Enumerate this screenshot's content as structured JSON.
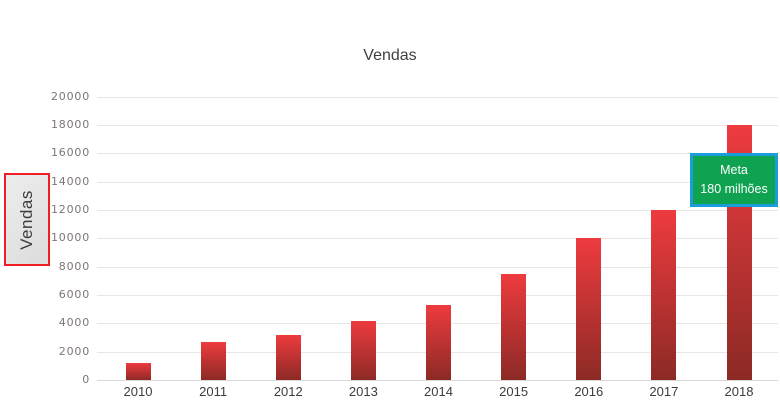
{
  "chart": {
    "y_axis_box_label": "Vendas",
    "annotation": {
      "line1": "Meta",
      "line2": "180 milhões"
    }
  },
  "chart_data": {
    "type": "bar",
    "title": "Vendas",
    "categories": [
      "2010",
      "2011",
      "2012",
      "2013",
      "2014",
      "2015",
      "2016",
      "2017",
      "2018"
    ],
    "values": [
      1200,
      2700,
      3200,
      4200,
      5300,
      7500,
      10000,
      12000,
      18000
    ],
    "xlabel": "",
    "ylabel": "Vendas",
    "ylim": [
      0,
      20000
    ],
    "ytick_step": 2000,
    "grid": true,
    "legend": "none",
    "annotations": [
      {
        "text": "Meta 180 milhões",
        "attached_to": "2018",
        "fill": "#0FA351",
        "border": "#1A9DDA"
      }
    ],
    "colors": {
      "bar_gradient_top": "#EE3B3E",
      "bar_gradient_bottom": "#8C2A26",
      "gridline": "#E7E7E7",
      "axis_line": "#D9D9D9",
      "title_text": "#3F3F3F",
      "ytick_text": "#7E7577",
      "xtick_text": "#3D3D3D",
      "axis_box_fill": "#E4E4E4",
      "axis_box_border": "#EF1D25"
    }
  }
}
